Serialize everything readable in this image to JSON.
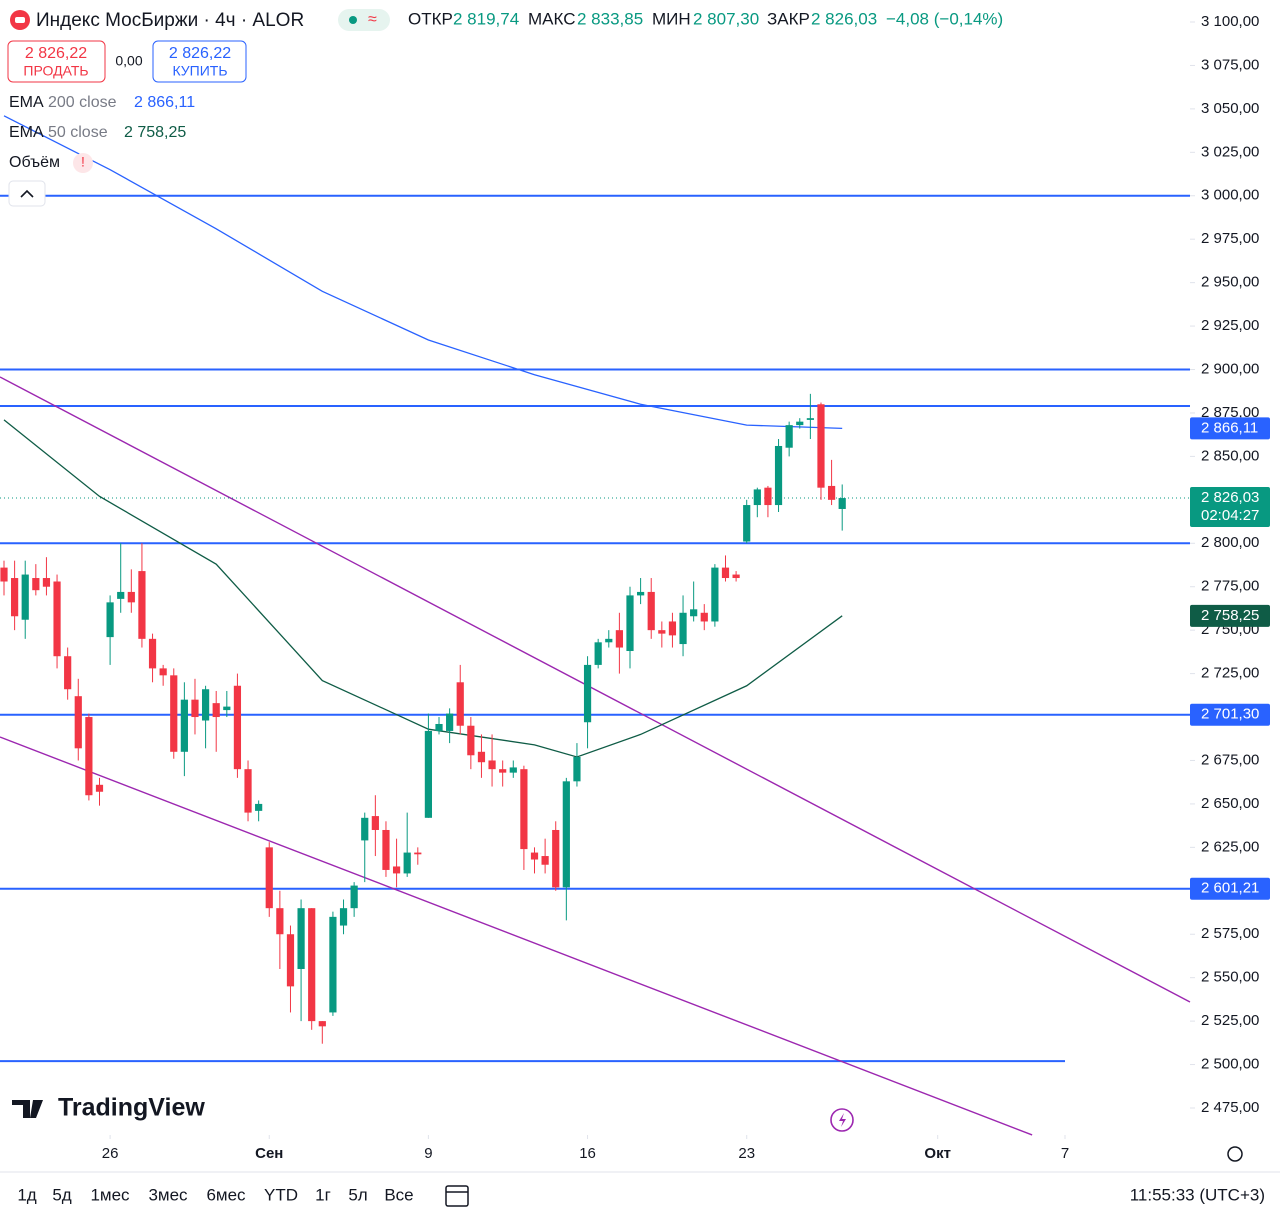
{
  "header": {
    "title": "Индекс МосБиржи · 4ч · ALOR",
    "ohlc": [
      {
        "label": "ОТКР",
        "value": "2 819,74"
      },
      {
        "label": "МАКС",
        "value": "2 833,85"
      },
      {
        "label": "МИН",
        "value": "2 807,30"
      },
      {
        "label": "ЗАКР",
        "value": "2 826,03"
      }
    ],
    "change": "−4,08 (−0,14%)",
    "sell": {
      "price": "2 826,22",
      "label": "ПРОДАТЬ"
    },
    "spread": "0,00",
    "buy": {
      "price": "2 826,22",
      "label": "КУПИТЬ"
    },
    "volume": "Объём",
    "volume_warning": "!"
  },
  "chart_data": {
    "type": "candlestick",
    "categories": [
      null,
      null,
      null,
      null,
      null,
      null,
      null,
      null,
      null,
      null,
      null,
      null,
      null,
      null,
      null,
      null,
      null,
      null,
      null,
      null,
      null,
      null,
      null,
      null,
      null,
      null,
      null,
      null,
      null,
      null,
      null,
      null,
      null,
      null,
      null,
      null,
      null,
      null,
      null,
      null,
      null,
      null,
      null,
      null,
      null,
      null,
      null,
      null,
      null,
      null,
      null,
      null,
      null,
      null,
      null,
      null,
      null,
      null,
      null,
      null,
      null,
      null,
      null,
      null,
      null,
      null,
      null,
      null,
      null,
      null,
      null,
      null,
      null,
      null,
      null,
      null,
      null,
      null,
      null,
      null
    ],
    "open": [
      2786,
      2780,
      2756,
      2780,
      2780,
      2778,
      2735,
      2712,
      2700,
      2661,
      2746,
      2768,
      2772,
      2784,
      2745,
      2728,
      2724,
      2680,
      2710,
      2698,
      2708,
      2704,
      2718,
      2670,
      2646,
      2625,
      2590,
      2575,
      2555,
      2590,
      2525,
      2530,
      2580,
      2590,
      2629,
      2643,
      2635,
      2614,
      2610,
      2622,
      2642,
      2692,
      2692,
      2720,
      2695,
      2680,
      2675,
      2670,
      2668,
      2670,
      2622,
      2620,
      2635,
      2602,
      2663,
      2697,
      2730,
      2743,
      2750,
      2738,
      2770,
      2772,
      2750,
      2755,
      2742,
      2758,
      2760,
      2755,
      2786,
      2782,
      2801,
      2822,
      2832,
      2822,
      2855,
      2868,
      2871,
      2880,
      2833,
      2819.74
    ],
    "high": [
      2790,
      2790,
      2790,
      2788,
      2792,
      2782,
      2740,
      2722,
      2702,
      2665,
      2770,
      2800,
      2785,
      2800,
      2748,
      2730,
      2728,
      2720,
      2722,
      2718,
      2715,
      2715,
      2725,
      2675,
      2652,
      2628,
      2600,
      2580,
      2595,
      2590,
      2525,
      2588,
      2595,
      2605,
      2645,
      2655,
      2640,
      2630,
      2645,
      2625,
      2702,
      2700,
      2705,
      2730,
      2700,
      2690,
      2690,
      2675,
      2675,
      2672,
      2625,
      2630,
      2640,
      2665,
      2685,
      2735,
      2745,
      2750,
      2760,
      2775,
      2780,
      2780,
      2755,
      2760,
      2770,
      2778,
      2765,
      2788,
      2793,
      2784,
      2825,
      2832,
      2833,
      2860,
      2870,
      2872,
      2886,
      2881,
      2848,
      2833.85
    ],
    "low": [
      2770,
      2750,
      2745,
      2770,
      2770,
      2728,
      2710,
      2675,
      2652,
      2649,
      2730,
      2760,
      2760,
      2740,
      2720,
      2718,
      2676,
      2666,
      2690,
      2682,
      2680,
      2700,
      2665,
      2640,
      2640,
      2585,
      2555,
      2530,
      2525,
      2520,
      2512,
      2528,
      2575,
      2585,
      2605,
      2620,
      2608,
      2602,
      2608,
      2615,
      2642,
      2690,
      2685,
      2690,
      2670,
      2665,
      2660,
      2660,
      2665,
      2612,
      2610,
      2610,
      2600,
      2583,
      2660,
      2682,
      2728,
      2740,
      2725,
      2728,
      2765,
      2745,
      2740,
      2740,
      2735,
      2755,
      2750,
      2752,
      2778,
      2778,
      2800,
      2815,
      2815,
      2818,
      2850,
      2866,
      2860,
      2825,
      2822,
      2807.3
    ],
    "close": [
      2778,
      2758,
      2782,
      2773,
      2775,
      2735,
      2716,
      2682,
      2655,
      2657,
      2766,
      2772,
      2766,
      2745,
      2728,
      2724,
      2680,
      2710,
      2700,
      2716,
      2700,
      2706,
      2670,
      2645,
      2650,
      2590,
      2575,
      2545,
      2590,
      2525,
      2522,
      2585,
      2590,
      2603,
      2642,
      2635,
      2612,
      2610,
      2622,
      2621,
      2692,
      2696,
      2702,
      2695,
      2678,
      2674,
      2670,
      2668,
      2671,
      2624,
      2618,
      2615,
      2602,
      2663,
      2677,
      2730,
      2743,
      2745,
      2740,
      2770,
      2772,
      2750,
      2748,
      2747,
      2760,
      2762,
      2755,
      2786,
      2780,
      2780,
      2822,
      2831,
      2822,
      2856,
      2868,
      2870,
      2872,
      2832,
      2825,
      2826.03
    ],
    "up_color": "#089981",
    "down_color": "#f23645",
    "indicators": [
      {
        "name": "EMA",
        "params": "200 close",
        "value_label": "2 866,11",
        "color": "#2962ff",
        "x": [
          0,
          10,
          20,
          30,
          40,
          50,
          60,
          70,
          79
        ],
        "values": [
          3046,
          3015,
          2981,
          2945,
          2917,
          2897,
          2880,
          2868,
          2866.11
        ]
      },
      {
        "name": "EMA",
        "params": "50 close",
        "value_label": "2 758,25",
        "color": "#0f5c46",
        "x": [
          0,
          9,
          20,
          30,
          40,
          50,
          54,
          60,
          70,
          79
        ],
        "values": [
          2871,
          2827,
          2788,
          2721,
          2693,
          2684,
          2677,
          2690,
          2718,
          2758.25
        ]
      }
    ],
    "levels": [
      {
        "value": 3000
      },
      {
        "value": 2900
      },
      {
        "value": 2879
      },
      {
        "value": 2800
      },
      {
        "value": 2701.3
      },
      {
        "value": 2601.21
      },
      {
        "value": 2502,
        "end": 100
      }
    ],
    "level_color": "#2962ff",
    "trendlines": [
      {
        "points": [
          [
            -0.377,
            2895.7
          ],
          [
            111.78,
            2536
          ]
        ]
      },
      {
        "points": [
          [
            -0.377,
            2688.5
          ],
          [
            96.9,
            2459.5
          ]
        ]
      }
    ],
    "trendline_color": "#9c27b0",
    "last_price": 2826.03,
    "price_labels": [
      {
        "value": 2866.11,
        "label": "2 866,11",
        "color": "#2962ff"
      },
      {
        "value": 2826.03,
        "label": "2 826,03",
        "countdown": "02:04:27",
        "color": "#089981"
      },
      {
        "value": 2758.25,
        "label": "2 758,25",
        "color": "#0f5c46"
      },
      {
        "value": 2701.3,
        "label": "2 701,30",
        "color": "#2962ff"
      },
      {
        "value": 2601.21,
        "label": "2 601,21",
        "color": "#2962ff"
      }
    ],
    "xlim": [
      -0.377,
      111.78
    ],
    "xticks": [
      {
        "value": 10,
        "label": "26"
      },
      {
        "value": 25,
        "label": "Сен"
      },
      {
        "value": 40,
        "label": "9"
      },
      {
        "value": 55,
        "label": "16"
      },
      {
        "value": 70,
        "label": "23"
      },
      {
        "value": 88,
        "label": "Окт"
      },
      {
        "value": 100,
        "label": "7"
      }
    ],
    "ylim": [
      2459.46,
      3112.66
    ],
    "yticks": [
      {
        "value": 3100,
        "label": "3 100,00"
      },
      {
        "value": 3075,
        "label": "3 075,00"
      },
      {
        "value": 3050,
        "label": "3 050,00"
      },
      {
        "value": 3025,
        "label": "3 025,00"
      },
      {
        "value": 3000,
        "label": "3 000,00"
      },
      {
        "value": 2975,
        "label": "2 975,00"
      },
      {
        "value": 2950,
        "label": "2 950,00"
      },
      {
        "value": 2925,
        "label": "2 925,00"
      },
      {
        "value": 2900,
        "label": "2 900,00"
      },
      {
        "value": 2875,
        "label": "2 875,00"
      },
      {
        "value": 2850,
        "label": "2 850,00"
      },
      {
        "value": 2825,
        "label": "2 825,00"
      },
      {
        "value": 2800,
        "label": "2 800,00"
      },
      {
        "value": 2775,
        "label": "2 775,00"
      },
      {
        "value": 2750,
        "label": "2 750,00"
      },
      {
        "value": 2725,
        "label": "2 725,00"
      },
      {
        "value": 2700,
        "label": "2 700,00"
      },
      {
        "value": 2675,
        "label": "2 675,00"
      },
      {
        "value": 2650,
        "label": "2 650,00"
      },
      {
        "value": 2625,
        "label": "2 625,00"
      },
      {
        "value": 2600,
        "label": "2 600,00"
      },
      {
        "value": 2575,
        "label": "2 575,00"
      },
      {
        "value": 2550,
        "label": "2 550,00"
      },
      {
        "value": 2525,
        "label": "2 525,00"
      },
      {
        "value": 2500,
        "label": "2 500,00"
      },
      {
        "value": 2475,
        "label": "2 475,00"
      }
    ]
  },
  "footer": {
    "brand": "TradingView",
    "ranges": [
      "1д",
      "5д",
      "1мес",
      "3мес",
      "6мес",
      "YTD",
      "1г",
      "5л",
      "Все"
    ],
    "time": "11:55:33 (UTC+3)"
  }
}
